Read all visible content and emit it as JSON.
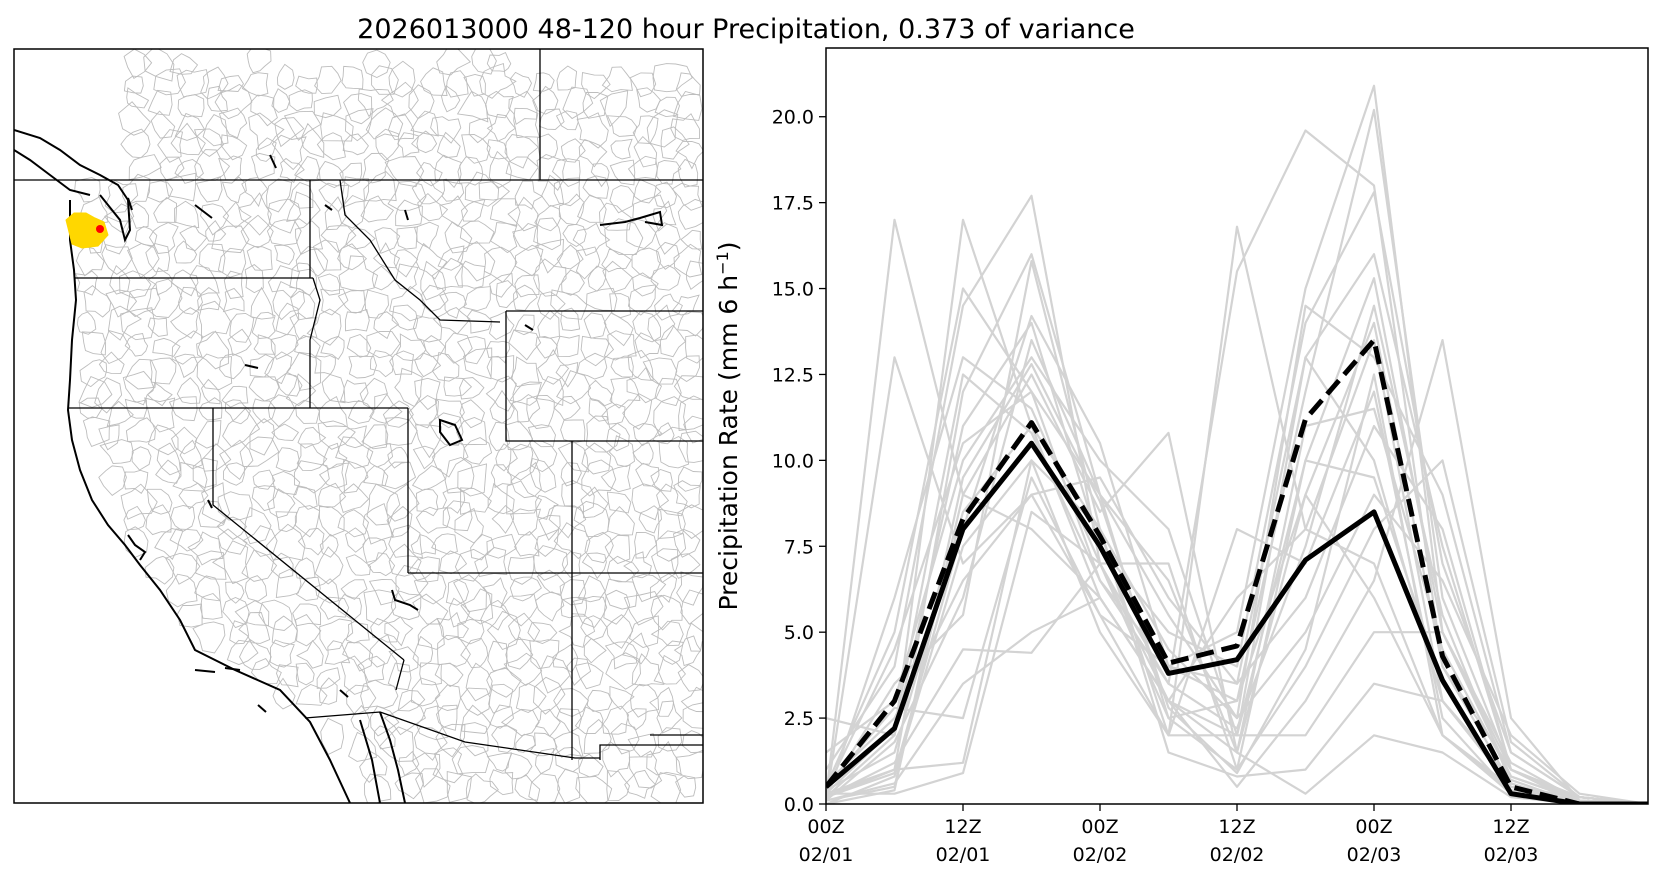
{
  "title": "2026013000 48-120 hour Precipitation, 0.373 of variance",
  "colors": {
    "ensemble": "#d3d3d3",
    "mean": "#000000",
    "highlight_fill": "#ffd700",
    "highlight_point": "#ff0000",
    "state_border": "#000000",
    "basin_border": "#bdbdbd"
  },
  "map": {
    "name": "western-us-basin-map",
    "lon_range": [
      -125.5,
      -101.0
    ],
    "lat_range": [
      31.0,
      49.5
    ],
    "highlight_basin": "olympic-peninsula-basin",
    "highlight_centroid_lonlat": [
      -124.0,
      47.9
    ]
  },
  "chart_data": {
    "type": "line",
    "title": "2026013000 48-120 hour Precipitation, 0.373 of variance",
    "xlabel": "",
    "ylabel": "Precipitation Rate (mm 6 h",
    "ylabel_sup": "−1",
    "ylabel_close": ")",
    "xlim": [
      0,
      18
    ],
    "ylim": [
      0,
      22
    ],
    "yticks": [
      0.0,
      2.5,
      5.0,
      7.5,
      10.0,
      12.5,
      15.0,
      17.5,
      20.0
    ],
    "ytick_labels": [
      "0.0",
      "2.5",
      "5.0",
      "7.5",
      "10.0",
      "12.5",
      "15.0",
      "17.5",
      "20.0"
    ],
    "xticks": [
      0,
      3,
      6,
      9,
      12,
      15
    ],
    "xtick_labels": [
      [
        "00Z",
        "02/01"
      ],
      [
        "12Z",
        "02/01"
      ],
      [
        "00Z",
        "02/02"
      ],
      [
        "12Z",
        "02/02"
      ],
      [
        "00Z",
        "02/03"
      ],
      [
        "12Z",
        "02/03"
      ]
    ],
    "x": [
      0,
      1.5,
      3,
      4.5,
      6,
      7.5,
      9,
      10.5,
      12,
      13.5,
      15,
      16.5,
      18
    ],
    "series": [
      {
        "name": "mean-solid",
        "style": "solid",
        "values": [
          0.5,
          2.2,
          8.0,
          10.5,
          7.5,
          3.8,
          4.2,
          7.1,
          8.5,
          3.6,
          0.3,
          0.0,
          0.0
        ]
      },
      {
        "name": "mean-dashed",
        "style": "dashed",
        "values": [
          0.5,
          3.0,
          8.3,
          11.1,
          7.8,
          4.1,
          4.6,
          11.2,
          13.5,
          4.3,
          0.5,
          0.0,
          0.0
        ]
      }
    ],
    "ensemble": [
      [
        0.2,
        17.0,
        9.0,
        8.0,
        6.0,
        3.0,
        2.0,
        13.0,
        10.0,
        3.0,
        0.5,
        0.1,
        0.0
      ],
      [
        0.1,
        13.0,
        7.0,
        9.0,
        5.5,
        4.0,
        3.0,
        9.0,
        6.0,
        2.0,
        0.4,
        0.1,
        0.0
      ],
      [
        2.5,
        2.0,
        17.0,
        11.0,
        8.0,
        2.0,
        16.8,
        8.0,
        7.0,
        2.0,
        0.5,
        0.2,
        0.0
      ],
      [
        1.0,
        4.0,
        14.5,
        17.7,
        7.0,
        3.5,
        15.5,
        19.6,
        18.0,
        4.0,
        1.0,
        0.1,
        0.0
      ],
      [
        0.5,
        5.0,
        15.0,
        12.0,
        6.5,
        4.0,
        5.0,
        15.0,
        20.9,
        5.0,
        0.8,
        0.1,
        0.0
      ],
      [
        0.3,
        1.0,
        12.0,
        16.0,
        9.0,
        2.5,
        3.0,
        12.0,
        20.2,
        6.0,
        1.0,
        0.2,
        0.0
      ],
      [
        0.2,
        2.0,
        11.0,
        14.0,
        7.5,
        5.0,
        4.0,
        14.0,
        17.8,
        7.0,
        1.5,
        0.2,
        0.0
      ],
      [
        1.5,
        3.0,
        10.0,
        13.0,
        10.0,
        8.0,
        2.0,
        10.0,
        15.3,
        5.0,
        1.2,
        0.1,
        0.0
      ],
      [
        0.1,
        0.5,
        9.0,
        12.5,
        8.5,
        10.8,
        1.5,
        9.0,
        14.0,
        4.0,
        0.6,
        0.0,
        0.0
      ],
      [
        0.4,
        1.5,
        8.5,
        11.0,
        6.0,
        3.0,
        6.0,
        8.0,
        13.5,
        3.0,
        0.5,
        0.0,
        0.0
      ],
      [
        0.0,
        0.8,
        7.5,
        10.0,
        5.0,
        2.0,
        8.0,
        7.0,
        12.0,
        2.5,
        0.3,
        0.0,
        0.0
      ],
      [
        0.6,
        2.5,
        6.5,
        9.0,
        9.5,
        6.0,
        3.5,
        6.0,
        11.0,
        8.0,
        1.0,
        0.2,
        0.0
      ],
      [
        0.3,
        3.5,
        5.5,
        15.8,
        8.0,
        4.5,
        2.5,
        5.0,
        9.0,
        6.5,
        2.0,
        0.3,
        0.0
      ],
      [
        0.2,
        1.2,
        4.5,
        4.4,
        7.0,
        7.0,
        1.0,
        4.0,
        8.0,
        10.0,
        1.8,
        0.2,
        0.0
      ],
      [
        0.1,
        0.6,
        3.5,
        5.0,
        6.0,
        3.0,
        0.5,
        3.0,
        6.5,
        13.5,
        2.5,
        0.1,
        0.0
      ],
      [
        0.5,
        2.8,
        2.5,
        9.5,
        5.5,
        2.0,
        2.0,
        2.0,
        5.0,
        5.0,
        1.0,
        0.0,
        0.0
      ],
      [
        0.2,
        1.0,
        1.2,
        10.0,
        8.0,
        1.5,
        0.8,
        1.0,
        3.5,
        3.0,
        0.7,
        0.0,
        0.0
      ],
      [
        0.3,
        0.3,
        0.9,
        8.5,
        7.0,
        3.0,
        1.5,
        0.3,
        2.0,
        1.5,
        0.2,
        0.0,
        0.0
      ],
      [
        0.1,
        1.8,
        6.0,
        13.5,
        9.0,
        5.5,
        2.5,
        14.5,
        13.0,
        9.0,
        1.5,
        0.2,
        0.0
      ],
      [
        0.2,
        0.9,
        8.0,
        14.2,
        10.5,
        4.0,
        3.5,
        13.0,
        16.0,
        7.5,
        1.0,
        0.1,
        0.0
      ],
      [
        0.4,
        4.5,
        10.5,
        12.0,
        9.0,
        6.5,
        1.5,
        11.0,
        11.5,
        4.5,
        0.8,
        0.1,
        0.0
      ],
      [
        0.1,
        6.0,
        13.0,
        11.5,
        7.0,
        2.5,
        1.0,
        10.0,
        9.5,
        3.5,
        0.4,
        0.0,
        0.0
      ],
      [
        0.3,
        2.2,
        12.5,
        10.8,
        6.5,
        3.5,
        2.2,
        7.5,
        14.5,
        5.5,
        0.6,
        0.0,
        0.0
      ],
      [
        0.0,
        0.4,
        9.5,
        12.8,
        8.8,
        2.8,
        0.9,
        4.5,
        12.5,
        2.0,
        0.3,
        0.0,
        0.0
      ]
    ]
  }
}
